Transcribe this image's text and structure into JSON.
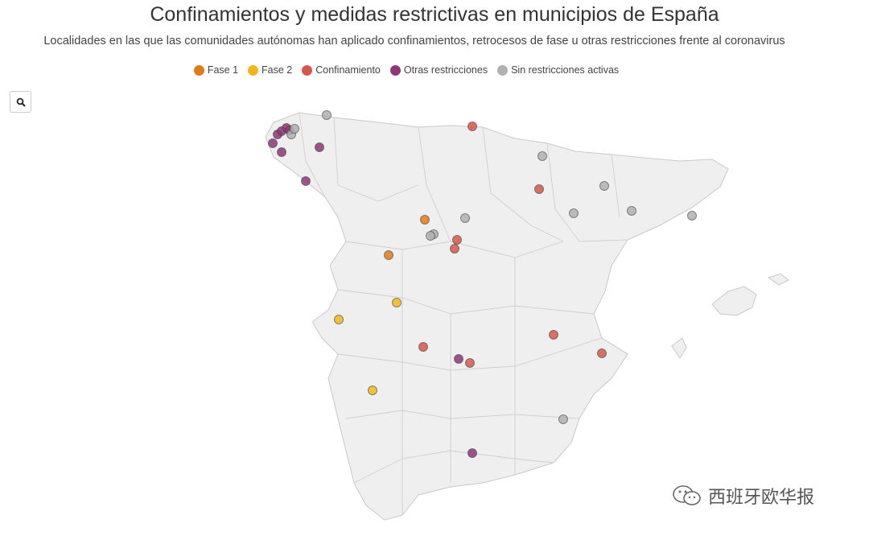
{
  "title": "Confinamientos y medidas restrictivas en municipios de España",
  "subtitle": "Localidades en las que las comunidades autónomas han aplicado confinamientos, retrocesos de fase u otras restricciones frente al coronavirus",
  "legend": [
    {
      "key": "fase1",
      "label": "Fase 1",
      "color": "#e07b1a"
    },
    {
      "key": "fase2",
      "label": "Fase 2",
      "color": "#f2b61e"
    },
    {
      "key": "confinamiento",
      "label": "Confinamiento",
      "color": "#d5574a"
    },
    {
      "key": "otras",
      "label": "Otras restricciones",
      "color": "#8e3777"
    },
    {
      "key": "sin",
      "label": "Sin restricciones activas",
      "color": "#b0b0b0"
    }
  ],
  "search": {
    "icon": "search-icon"
  },
  "watermark": {
    "icon": "wechat-icon",
    "text": "西班牙欧华报"
  }
}
